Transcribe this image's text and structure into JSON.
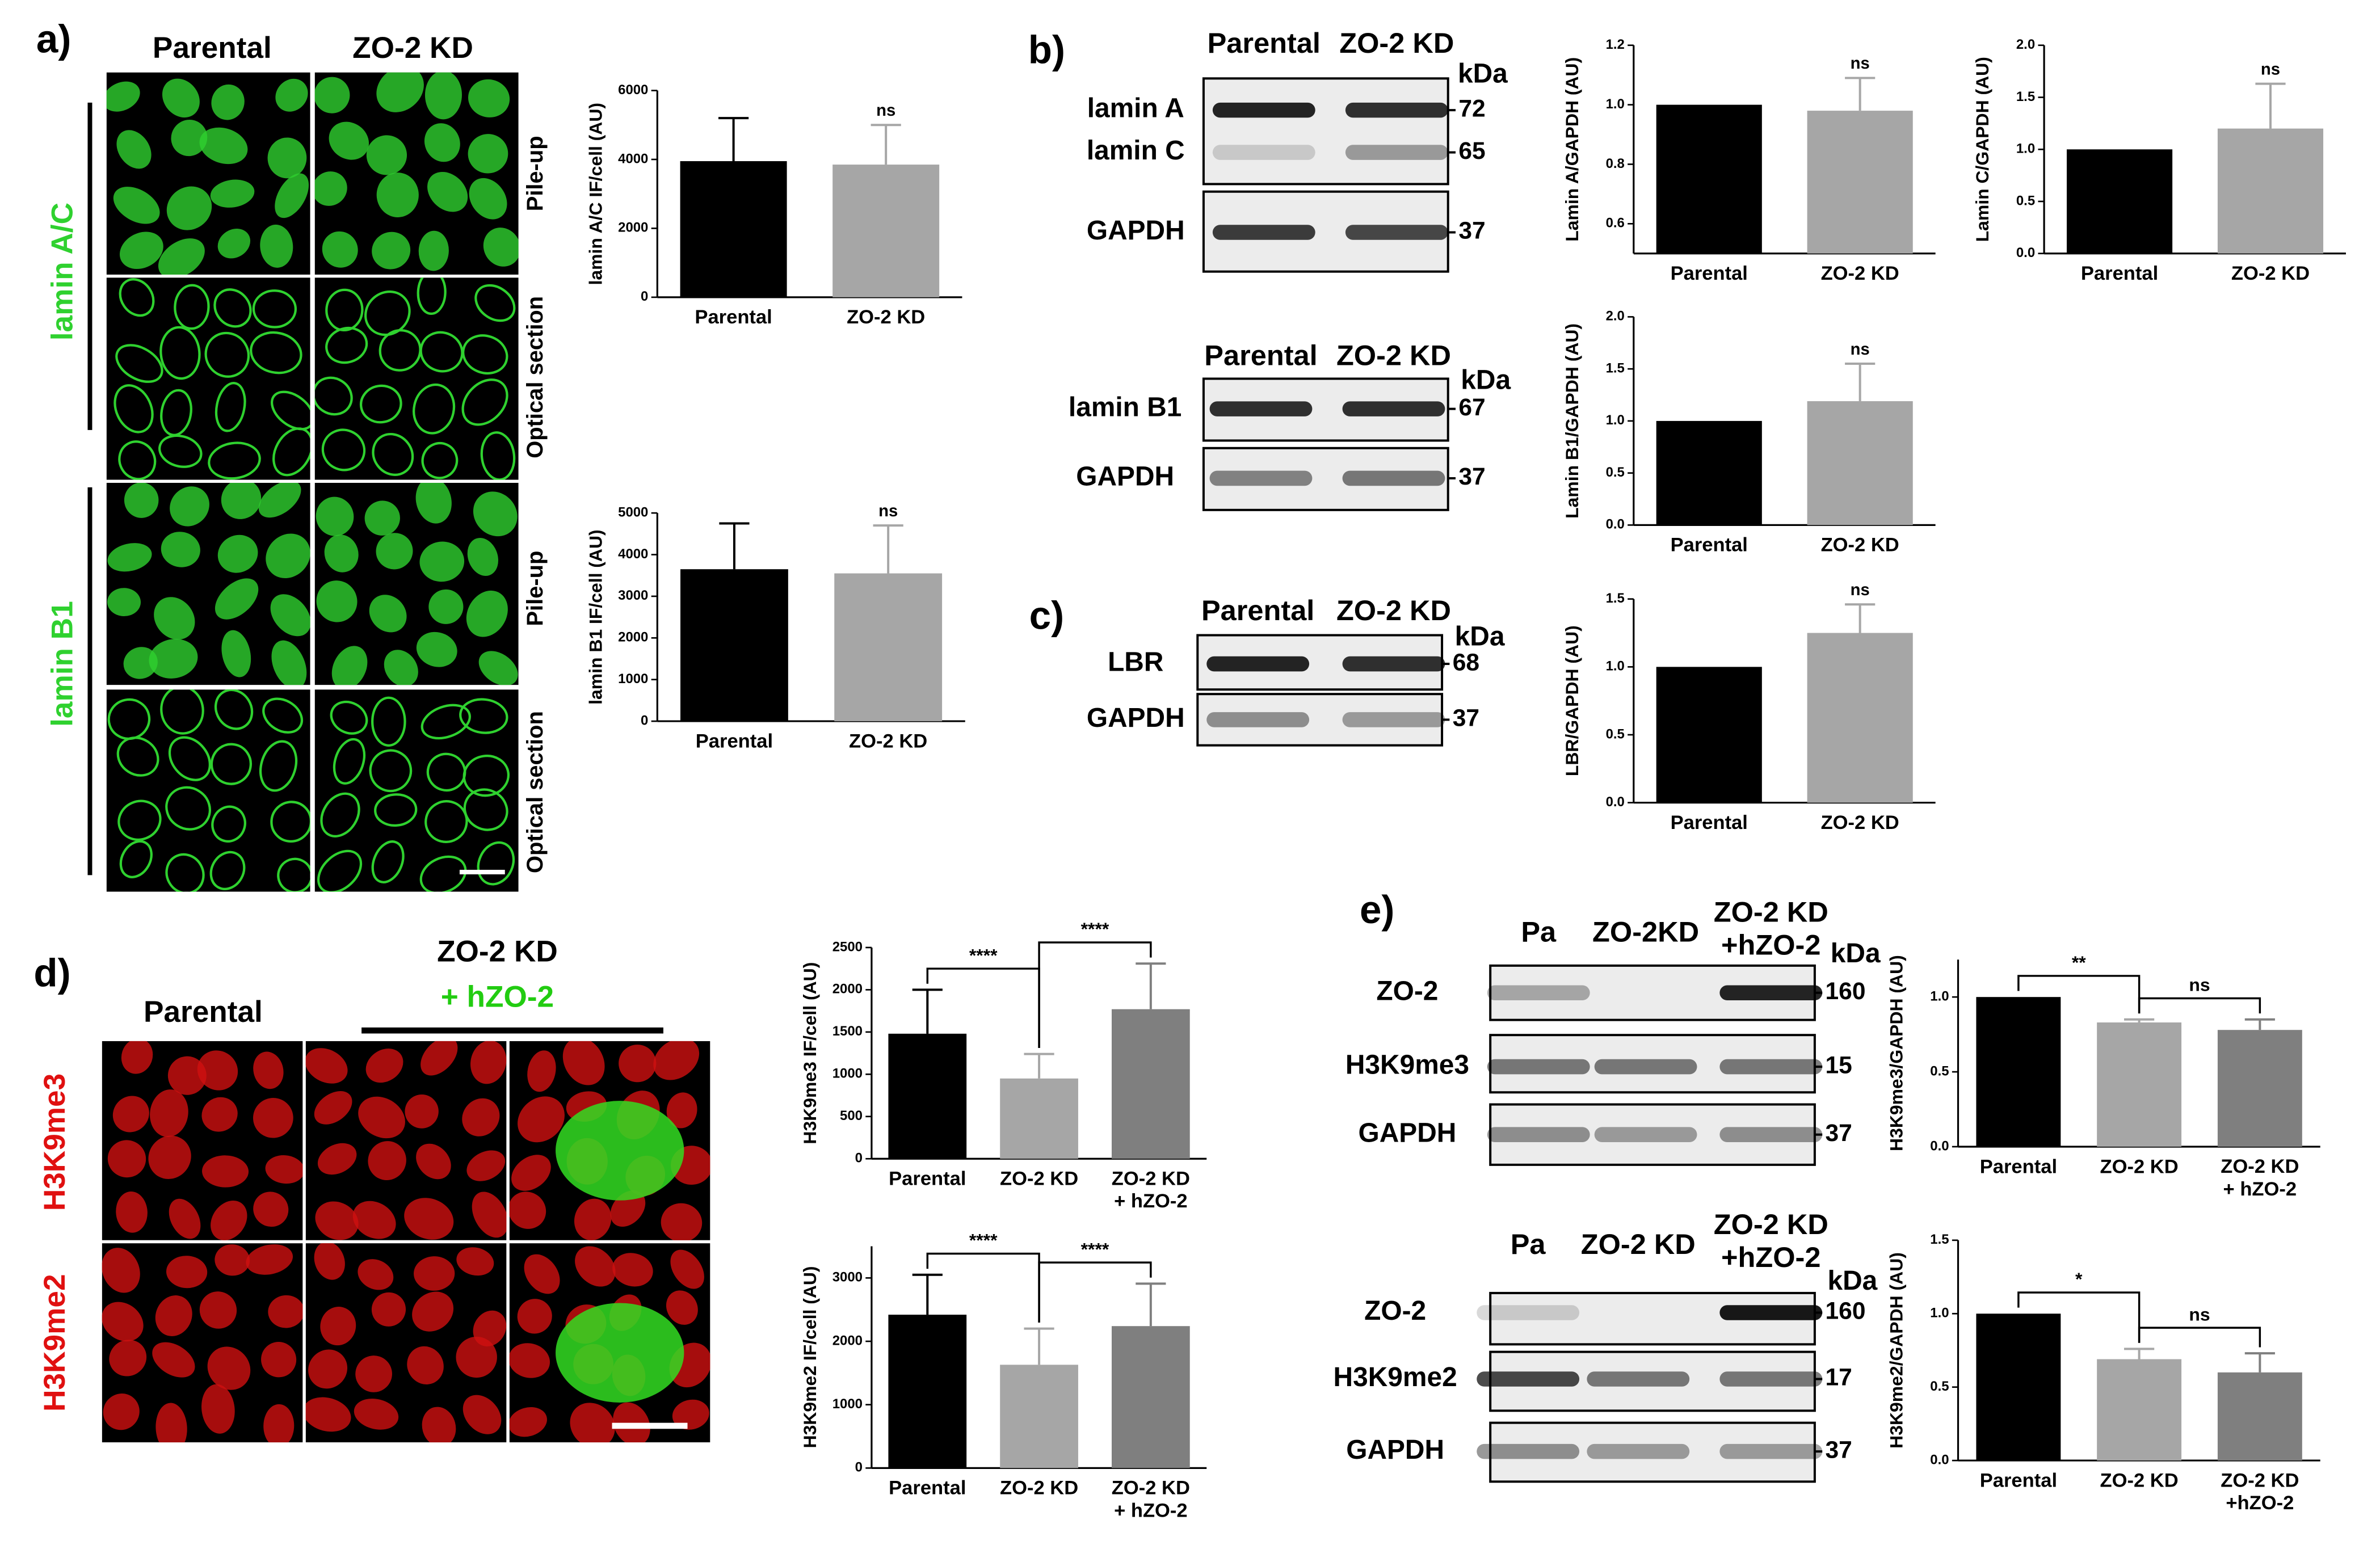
{
  "panel_labels": [
    "a)",
    "b)",
    "c)",
    "d)",
    "e)"
  ],
  "images_a": {
    "columns": [
      "Parental",
      "ZO-2 KD"
    ],
    "stains": [
      "lamin A/C",
      "lamin B1"
    ],
    "sections": [
      "Pile-up",
      "Optical section",
      "Pile-up",
      "Optical section"
    ]
  },
  "images_d": {
    "header": [
      "Parental",
      "ZO-2 KD",
      "+ hZO-2"
    ],
    "stains": [
      "H3K9me3",
      "H3K9me2"
    ]
  },
  "blots": [
    {
      "lanes": [
        "Parental",
        "ZO-2 KD"
      ],
      "unit": "kDa",
      "rows": [
        {
          "labels": [
            "lamin A",
            "lamin C"
          ],
          "markers": [
            72,
            65
          ]
        },
        {
          "labels": [
            "GAPDH"
          ],
          "markers": [
            37
          ]
        }
      ]
    },
    {
      "lanes": [
        "Parental",
        "ZO-2 KD"
      ],
      "unit": "kDa",
      "rows": [
        {
          "labels": [
            "lamin B1"
          ],
          "markers": [
            67
          ]
        },
        {
          "labels": [
            "GAPDH"
          ],
          "markers": [
            37
          ]
        }
      ]
    },
    {
      "lanes": [
        "Parental",
        "ZO-2 KD"
      ],
      "unit": "kDa",
      "rows": [
        {
          "labels": [
            "LBR"
          ],
          "markers": [
            68
          ]
        },
        {
          "labels": [
            "GAPDH"
          ],
          "markers": [
            37
          ]
        }
      ]
    },
    {
      "lanes": [
        "Pa",
        "ZO-2KD",
        "ZO-2 KD\n+hZO-2"
      ],
      "unit": "kDa",
      "rows": [
        {
          "labels": [
            "ZO-2"
          ],
          "markers": [
            160
          ]
        },
        {
          "labels": [
            "H3K9me3"
          ],
          "markers": [
            15
          ]
        },
        {
          "labels": [
            "GAPDH"
          ],
          "markers": [
            37
          ]
        }
      ]
    },
    {
      "lanes": [
        "Pa",
        "ZO-2 KD",
        "ZO-2 KD\n+hZO-2"
      ],
      "unit": "kDa",
      "rows": [
        {
          "labels": [
            "ZO-2"
          ],
          "markers": [
            160
          ]
        },
        {
          "labels": [
            "H3K9me2"
          ],
          "markers": [
            17
          ]
        },
        {
          "labels": [
            "GAPDH"
          ],
          "markers": [
            37
          ]
        }
      ]
    }
  ],
  "chart_data": [
    {
      "type": "bar",
      "ylabel": "lamin A/C IF/cell (AU)",
      "categories": [
        "Parental",
        "ZO-2 KD"
      ],
      "values": [
        3950,
        3850
      ],
      "errors": [
        1250,
        1150
      ],
      "colors": [
        "#000000",
        "#a6a6a6"
      ],
      "ylim": [
        0,
        6000
      ],
      "yticks": [
        0,
        2000,
        4000,
        6000
      ],
      "annotations": [
        {
          "label": "ns",
          "at": 1
        }
      ]
    },
    {
      "type": "bar",
      "ylabel": "lamin B1 IF/cell (AU)",
      "categories": [
        "Parental",
        "ZO-2 KD"
      ],
      "values": [
        3650,
        3550
      ],
      "errors": [
        1100,
        1150
      ],
      "colors": [
        "#000000",
        "#a6a6a6"
      ],
      "ylim": [
        0,
        5000
      ],
      "yticks": [
        0,
        1000,
        2000,
        3000,
        4000,
        5000
      ],
      "annotations": [
        {
          "label": "ns",
          "at": 1
        }
      ]
    },
    {
      "type": "bar",
      "ylabel": "Lamin A/GAPDH (AU)",
      "categories": [
        "Parental",
        "ZO-2 KD"
      ],
      "values": [
        1.0,
        0.98
      ],
      "errors": [
        0,
        0.11
      ],
      "colors": [
        "#000000",
        "#a6a6a6"
      ],
      "ylim": [
        0.5,
        1.2
      ],
      "yticks": [
        0.6,
        0.8,
        {
          "value": 1,
          "label": "1.0"
        },
        1.2
      ],
      "annotations": [
        {
          "label": "ns",
          "at": 1
        }
      ]
    },
    {
      "type": "bar",
      "ylabel": "Lamin C/GAPDH (AU)",
      "categories": [
        "Parental",
        "ZO-2 KD"
      ],
      "values": [
        1.0,
        1.2
      ],
      "errors": [
        0,
        0.43
      ],
      "colors": [
        "#000000",
        "#a6a6a6"
      ],
      "ylim": [
        0,
        2
      ],
      "yticks": [
        {
          "value": 0,
          "label": "0.0"
        },
        0.5,
        {
          "value": 1,
          "label": "1.0"
        },
        1.5,
        {
          "value": 2,
          "label": "2.0"
        }
      ],
      "annotations": [
        {
          "label": "ns",
          "at": 1
        }
      ]
    },
    {
      "type": "bar",
      "ylabel": "Lamin B1/GAPDH (AU)",
      "categories": [
        "Parental",
        "ZO-2 KD"
      ],
      "values": [
        1.0,
        1.19
      ],
      "errors": [
        0,
        0.36
      ],
      "colors": [
        "#000000",
        "#a6a6a6"
      ],
      "ylim": [
        0,
        2
      ],
      "yticks": [
        {
          "value": 0,
          "label": "0.0"
        },
        0.5,
        {
          "value": 1,
          "label": "1.0"
        },
        1.5,
        {
          "value": 2,
          "label": "2.0"
        }
      ],
      "annotations": [
        {
          "label": "ns",
          "at": 1
        }
      ]
    },
    {
      "type": "bar",
      "ylabel": "LBR/GAPDH (AU)",
      "categories": [
        "Parental",
        "ZO-2 KD"
      ],
      "values": [
        1.0,
        1.25
      ],
      "errors": [
        0,
        0.21
      ],
      "colors": [
        "#000000",
        "#a6a6a6"
      ],
      "ylim": [
        0,
        1.5
      ],
      "yticks": [
        {
          "value": 0,
          "label": "0.0"
        },
        0.5,
        {
          "value": 1,
          "label": "1.0"
        },
        1.5
      ],
      "annotations": [
        {
          "label": "ns",
          "at": 1
        }
      ]
    },
    {
      "type": "bar",
      "ylabel": "H3K9me3 IF/cell (AU)",
      "categories": [
        "Parental",
        "ZO-2 KD",
        "ZO-2 KD\n+ hZO-2"
      ],
      "values": [
        1480,
        950,
        1770
      ],
      "errors": [
        520,
        290,
        540
      ],
      "colors": [
        "#000000",
        "#a6a6a6",
        "#7f7f7f"
      ],
      "ylim": [
        0,
        2500
      ],
      "yticks": [
        0,
        500,
        1000,
        1500,
        2000,
        2500
      ],
      "annotations": [
        {
          "label": "****",
          "between": [
            0,
            1
          ]
        },
        {
          "label": "****",
          "between": [
            1,
            2
          ]
        }
      ]
    },
    {
      "type": "bar",
      "ylabel": "H3K9me2 IF/cell (AU)",
      "categories": [
        "Parental",
        "ZO-2 KD",
        "ZO-2 KD\n+ hZO-2"
      ],
      "values": [
        2420,
        1630,
        2240
      ],
      "errors": [
        630,
        570,
        670
      ],
      "colors": [
        "#000000",
        "#a6a6a6",
        "#7f7f7f"
      ],
      "ylim": [
        0,
        3500
      ],
      "yticks": [
        0,
        1000,
        2000,
        3000
      ],
      "annotations": [
        {
          "label": "****",
          "between": [
            0,
            1
          ]
        },
        {
          "label": "****",
          "between": [
            1,
            2
          ]
        }
      ]
    },
    {
      "type": "bar",
      "ylabel": "H3K9me3/GAPDH (AU)",
      "categories": [
        "Parental",
        "ZO-2 KD",
        "ZO-2 KD\n+ hZO-2"
      ],
      "values": [
        1.0,
        0.83,
        0.78
      ],
      "errors": [
        0,
        0.02,
        0.07
      ],
      "colors": [
        "#000000",
        "#a6a6a6",
        "#7f7f7f"
      ],
      "ylim": [
        0,
        1.25
      ],
      "yticks": [
        {
          "value": 0,
          "label": "0.0"
        },
        0.5,
        {
          "value": 1,
          "label": "1.0"
        }
      ],
      "annotations": [
        {
          "label": "**",
          "between": [
            0,
            1
          ]
        },
        {
          "label": "ns",
          "between": [
            1,
            2
          ]
        }
      ]
    },
    {
      "type": "bar",
      "ylabel": "H3K9me2/GAPDH (AU)",
      "categories": [
        "Parental",
        "ZO-2 KD",
        "ZO-2 KD\n+hZO-2"
      ],
      "values": [
        1.0,
        0.69,
        0.6
      ],
      "errors": [
        0,
        0.07,
        0.13
      ],
      "colors": [
        "#000000",
        "#a6a6a6",
        "#7f7f7f"
      ],
      "ylim": [
        0,
        1.5
      ],
      "yticks": [
        {
          "value": 0,
          "label": "0.0"
        },
        0.5,
        {
          "value": 1,
          "label": "1.0"
        },
        1.5
      ],
      "annotations": [
        {
          "label": "*",
          "between": [
            0,
            1
          ]
        },
        {
          "label": "ns",
          "between": [
            1,
            2
          ]
        }
      ]
    }
  ]
}
